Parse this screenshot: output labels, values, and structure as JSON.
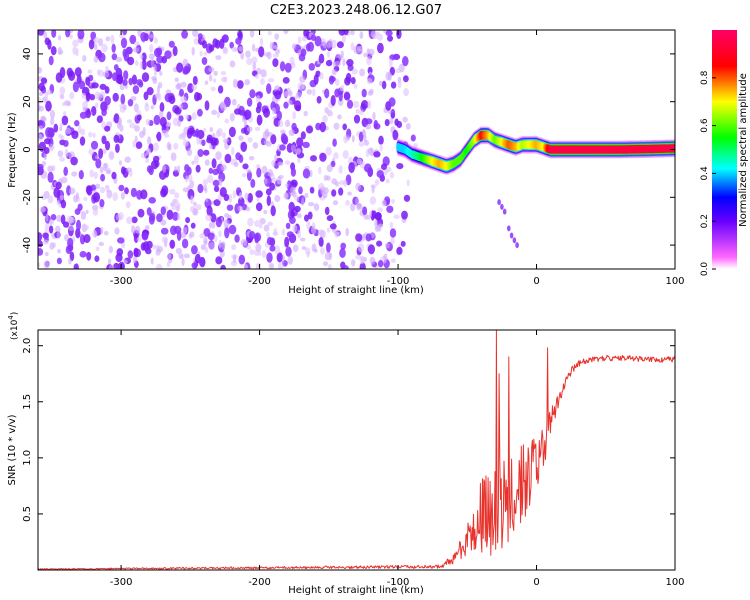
{
  "title": "C2E3.2023.248.06.12.G07",
  "chart_data": [
    {
      "type": "heatmap",
      "title": "C2E3.2023.248.06.12.G07",
      "xlabel": "Height of straight line (km)",
      "ylabel": "Frequency (Hz)",
      "xlim": [
        -360,
        100
      ],
      "ylim": [
        -50,
        50
      ],
      "x_ticks": [
        -300,
        -200,
        -100,
        0,
        100
      ],
      "y_ticks": [
        -40,
        -20,
        0,
        20,
        40
      ],
      "colorbar": {
        "label": "Normalized spectral amplitude",
        "range": [
          0,
          1
        ],
        "ticks": [
          "0.0",
          "0.2",
          "0.4",
          "0.6",
          "0.8"
        ],
        "colors": [
          "#ffffff",
          "#ff66ff",
          "#6600ff",
          "#0000ff",
          "#00ffff",
          "#00ff00",
          "#ffff00",
          "#ff0000"
        ]
      },
      "noise_region": {
        "x_range": [
          -360,
          -85
        ],
        "freq_range": [
          -50,
          50
        ],
        "amplitude": 0.25
      },
      "signal_track": {
        "x": [
          -100,
          -95,
          -90,
          -85,
          -80,
          -75,
          -70,
          -65,
          -60,
          -55,
          -50,
          -45,
          -40,
          -35,
          -30,
          -25,
          -20,
          -15,
          -10,
          -5,
          0,
          5,
          10,
          20,
          40,
          60,
          80,
          100
        ],
        "freq_hz": [
          1,
          0,
          -2,
          -3,
          -4,
          -5,
          -6,
          -7,
          -6,
          -4,
          0,
          4,
          6,
          6,
          4,
          3,
          2,
          1,
          2,
          2,
          2,
          1,
          0,
          0,
          0,
          0,
          0.2,
          0.5
        ],
        "amplitude": [
          0.4,
          0.4,
          0.45,
          0.5,
          0.6,
          0.7,
          0.75,
          0.7,
          0.6,
          0.6,
          0.55,
          0.65,
          0.85,
          0.75,
          0.6,
          0.7,
          0.8,
          0.75,
          0.65,
          0.7,
          0.75,
          0.7,
          0.95,
          0.95,
          0.95,
          0.95,
          0.95,
          0.95
        ]
      },
      "secondary_track": {
        "x": [
          -27,
          -25,
          -23,
          -20,
          -18,
          -16,
          -14
        ],
        "freq_hz": [
          -22,
          -24,
          -26,
          -33,
          -36,
          -38,
          -40
        ]
      }
    },
    {
      "type": "line",
      "xlabel": "Height of straight line (km)",
      "ylabel": "SNR (10 * v/v)",
      "y_multiplier_label": "(x10",
      "y_multiplier_exponent": "4",
      "y_multiplier_close": ")",
      "xlim": [
        -360,
        100
      ],
      "ylim": [
        0,
        21400
      ],
      "x_ticks": [
        -300,
        -200,
        -100,
        0,
        100
      ],
      "y_ticks": [
        {
          "value": 5000,
          "label": "0.5"
        },
        {
          "value": 10000,
          "label": "1.0"
        },
        {
          "value": 15000,
          "label": "1.5"
        },
        {
          "value": 20000,
          "label": "2.0"
        }
      ],
      "color": "#e8332d",
      "envelope": {
        "x": [
          -360,
          -70,
          -60,
          -55,
          -50,
          -45,
          -40,
          -35,
          -30,
          -25,
          -20,
          -15,
          -10,
          -5,
          0,
          5,
          10,
          15,
          20,
          25,
          30,
          40,
          50,
          60,
          70,
          80,
          90,
          100
        ],
        "mean": [
          80,
          300,
          900,
          1800,
          2800,
          3800,
          4600,
          5200,
          5600,
          6000,
          6600,
          7200,
          7800,
          8400,
          9500,
          11000,
          13000,
          15000,
          16500,
          17700,
          18400,
          18800,
          18900,
          18900,
          18850,
          18800,
          18750,
          18800
        ],
        "spread": [
          40,
          150,
          500,
          900,
          1500,
          2500,
          3500,
          4000,
          4500,
          4500,
          4000,
          3800,
          3500,
          3000,
          2500,
          2000,
          1200,
          800,
          500,
          350,
          300,
          250,
          250,
          250,
          250,
          250,
          250,
          250
        ]
      },
      "peaks": [
        {
          "x": -29,
          "y": 21400
        },
        {
          "x": -27,
          "y": 17500
        },
        {
          "x": -20,
          "y": 19000
        },
        {
          "x": 8,
          "y": 19800
        }
      ]
    }
  ]
}
